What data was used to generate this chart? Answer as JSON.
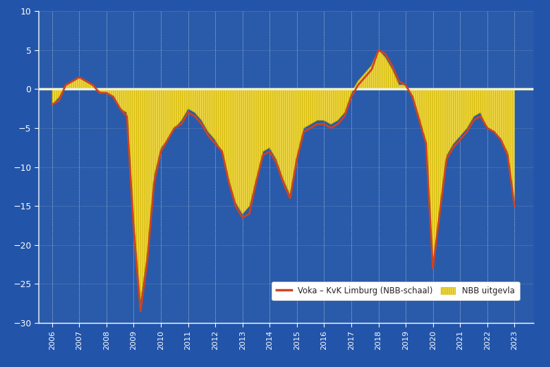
{
  "background_color": "#2255aa",
  "plot_bg_color": "#2a5baa",
  "line_color": "#cc4422",
  "bar_color": "#f5e060",
  "bar_edge_color": "#d4b800",
  "zero_line_color": "#f0f0d0",
  "grid_color": "#ffffff",
  "tick_color": "#ffffff",
  "label_color": "#ffffff",
  "ylim": [
    -30,
    10
  ],
  "yticks": [
    -30,
    -25,
    -20,
    -15,
    -10,
    -5,
    0,
    5,
    10
  ],
  "legend_label_line": "Voka – KvK Limburg (NBB-schaal)",
  "legend_label_bar": "NBB uitgevla",
  "years": [
    2006,
    2007,
    2008,
    2009,
    2010,
    2011,
    2012,
    2013,
    2014,
    2015,
    2016,
    2017,
    2018,
    2019,
    2020,
    2021,
    2022,
    2023
  ],
  "voka_x": [
    2006.0,
    2006.25,
    2006.5,
    2006.75,
    2007.0,
    2007.25,
    2007.5,
    2007.75,
    2008.0,
    2008.25,
    2008.5,
    2008.75,
    2009.0,
    2009.25,
    2009.5,
    2009.75,
    2010.0,
    2010.25,
    2010.5,
    2010.75,
    2011.0,
    2011.25,
    2011.5,
    2011.75,
    2012.0,
    2012.25,
    2012.5,
    2012.75,
    2013.0,
    2013.25,
    2013.5,
    2013.75,
    2014.0,
    2014.25,
    2014.5,
    2014.75,
    2015.0,
    2015.25,
    2015.5,
    2015.75,
    2016.0,
    2016.25,
    2016.5,
    2016.75,
    2017.0,
    2017.25,
    2017.5,
    2017.75,
    2018.0,
    2018.25,
    2018.5,
    2018.75,
    2019.0,
    2019.25,
    2019.5,
    2019.75,
    2020.0,
    2020.25,
    2020.5,
    2020.75,
    2021.0,
    2021.25,
    2021.5,
    2021.75,
    2022.0,
    2022.25,
    2022.5,
    2022.75,
    2023.0
  ],
  "voka_y": [
    -2.0,
    -1.5,
    0.5,
    1.0,
    1.5,
    1.0,
    0.5,
    -0.5,
    -0.5,
    -1.0,
    -2.5,
    -3.5,
    -18.0,
    -28.5,
    -22.0,
    -12.0,
    -8.0,
    -6.5,
    -5.0,
    -4.5,
    -3.0,
    -3.5,
    -4.5,
    -6.0,
    -7.0,
    -8.0,
    -12.0,
    -15.0,
    -16.5,
    -16.0,
    -12.0,
    -8.5,
    -8.0,
    -9.5,
    -12.0,
    -14.0,
    -9.0,
    -5.5,
    -5.0,
    -4.5,
    -4.5,
    -5.0,
    -4.5,
    -3.5,
    -1.0,
    0.5,
    1.5,
    2.5,
    5.0,
    4.5,
    3.0,
    1.0,
    0.5,
    -1.0,
    -4.0,
    -7.0,
    -23.0,
    -16.0,
    -9.0,
    -7.5,
    -6.5,
    -5.5,
    -4.0,
    -3.5,
    -5.0,
    -5.5,
    -6.5,
    -8.5,
    -15.0
  ],
  "nbb_x": [
    2006.0,
    2006.25,
    2006.5,
    2006.75,
    2007.0,
    2007.25,
    2007.5,
    2007.75,
    2008.0,
    2008.25,
    2008.5,
    2008.75,
    2009.0,
    2009.25,
    2009.5,
    2009.75,
    2010.0,
    2010.25,
    2010.5,
    2010.75,
    2011.0,
    2011.25,
    2011.5,
    2011.75,
    2012.0,
    2012.25,
    2012.5,
    2012.75,
    2013.0,
    2013.25,
    2013.5,
    2013.75,
    2014.0,
    2014.25,
    2014.5,
    2014.75,
    2015.0,
    2015.25,
    2015.5,
    2015.75,
    2016.0,
    2016.25,
    2016.5,
    2016.75,
    2017.0,
    2017.25,
    2017.5,
    2017.75,
    2018.0,
    2018.25,
    2018.5,
    2018.75,
    2019.0,
    2019.25,
    2019.5,
    2019.75,
    2020.0,
    2020.25,
    2020.5,
    2020.75,
    2021.0,
    2021.25,
    2021.5,
    2021.75,
    2022.0,
    2022.25,
    2022.5,
    2022.75,
    2023.0
  ],
  "nbb_y": [
    -2.0,
    -1.0,
    0.5,
    1.0,
    1.5,
    1.0,
    0.5,
    -0.3,
    -0.5,
    -1.0,
    -2.5,
    -3.0,
    -16.0,
    -27.0,
    -21.0,
    -11.0,
    -7.5,
    -6.5,
    -5.0,
    -4.0,
    -2.5,
    -3.0,
    -4.0,
    -5.5,
    -6.5,
    -8.0,
    -11.5,
    -14.5,
    -16.0,
    -15.0,
    -11.5,
    -8.0,
    -7.5,
    -9.0,
    -11.5,
    -13.5,
    -8.5,
    -5.0,
    -4.5,
    -4.0,
    -4.0,
    -4.5,
    -4.0,
    -3.0,
    -0.5,
    1.0,
    2.0,
    3.0,
    5.0,
    4.0,
    2.5,
    0.5,
    0.5,
    -1.0,
    -3.5,
    -7.0,
    -23.0,
    -15.5,
    -8.5,
    -7.0,
    -6.0,
    -5.0,
    -3.5,
    -3.0,
    -5.0,
    -5.5,
    -6.5,
    -8.0,
    -15.0
  ]
}
